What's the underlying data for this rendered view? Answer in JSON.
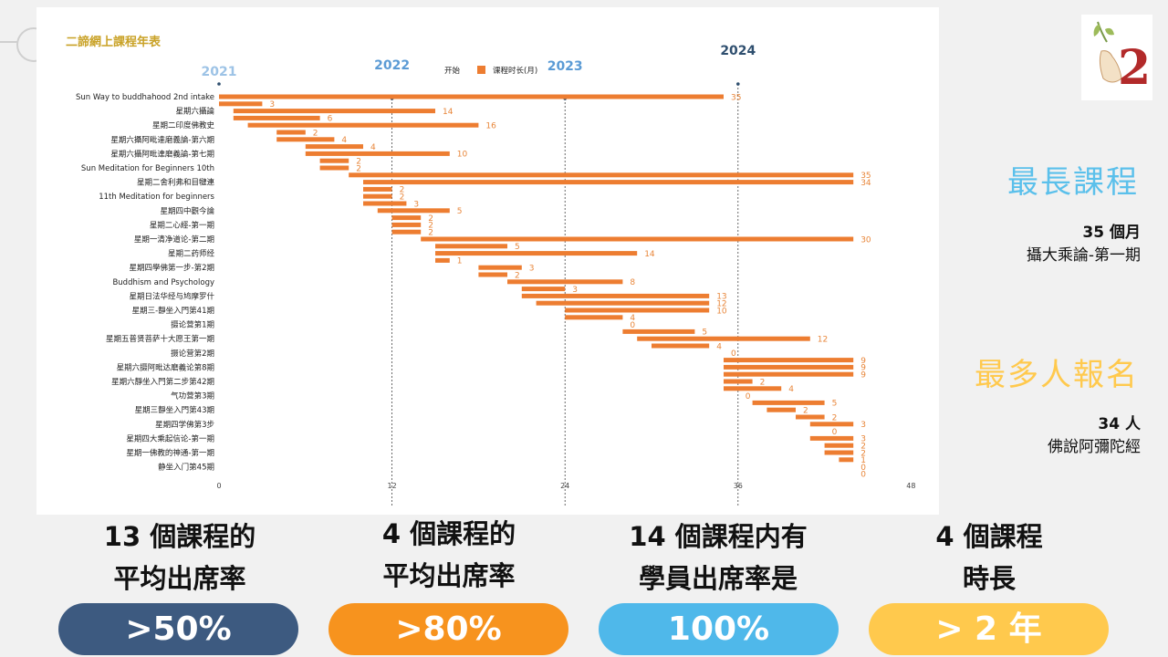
{
  "chart_data": {
    "type": "gantt",
    "title": "二諦網上課程年表",
    "legend": {
      "start_label": "开始",
      "duration_label": "课程时长(月)"
    },
    "x_ticks": [
      0,
      12,
      24,
      36,
      48
    ],
    "x_range": [
      0,
      48
    ],
    "year_markers": [
      {
        "label": "2021",
        "x": 0,
        "color": "#9dc3e6"
      },
      {
        "label": "2022",
        "x": 12,
        "color": "#5b9bd5"
      },
      {
        "label": "2023",
        "x": 24,
        "color": "#5b9bd5"
      },
      {
        "label": "2024",
        "x": 36,
        "color": "#2f4f6f"
      }
    ],
    "courses": [
      {
        "name": "Sun Way to buddhahood 2nd intake",
        "start": 0,
        "duration": 35
      },
      {
        "name": "",
        "start": 0,
        "duration": 3
      },
      {
        "name": "星期六攝論",
        "start": 1,
        "duration": 14
      },
      {
        "name": "",
        "start": 1,
        "duration": 6
      },
      {
        "name": "星期二印度佛教史",
        "start": 2,
        "duration": 16
      },
      {
        "name": "",
        "start": 4,
        "duration": 2
      },
      {
        "name": "星期六攝阿毗達磨義論-第六期",
        "start": 4,
        "duration": 4
      },
      {
        "name": "",
        "start": 6,
        "duration": 4
      },
      {
        "name": "星期六攝阿毗達磨義論-第七期",
        "start": 6,
        "duration": 10
      },
      {
        "name": "",
        "start": 7,
        "duration": 2
      },
      {
        "name": "Sun Meditation for Beginners 10th",
        "start": 7,
        "duration": 2
      },
      {
        "name": "",
        "start": 9,
        "duration": 35
      },
      {
        "name": "星期二舍利弗和目犍連",
        "start": 10,
        "duration": 34
      },
      {
        "name": "",
        "start": 10,
        "duration": 2
      },
      {
        "name": "11th Meditation for beginners",
        "start": 10,
        "duration": 2
      },
      {
        "name": "",
        "start": 10,
        "duration": 3
      },
      {
        "name": "星期四中觀今論",
        "start": 11,
        "duration": 5
      },
      {
        "name": "",
        "start": 12,
        "duration": 2
      },
      {
        "name": "星期二心經-第一期",
        "start": 12,
        "duration": 2
      },
      {
        "name": "",
        "start": 12,
        "duration": 2
      },
      {
        "name": "星期一清净道论-第二期",
        "start": 14,
        "duration": 30
      },
      {
        "name": "",
        "start": 15,
        "duration": 5
      },
      {
        "name": "星期二药师经",
        "start": 15,
        "duration": 14
      },
      {
        "name": "",
        "start": 15,
        "duration": 1
      },
      {
        "name": "星期四學佛第一步-第2期",
        "start": 18,
        "duration": 3
      },
      {
        "name": "",
        "start": 18,
        "duration": 2
      },
      {
        "name": "Buddhism and Psychology",
        "start": 20,
        "duration": 8
      },
      {
        "name": "",
        "start": 21,
        "duration": 3
      },
      {
        "name": "星期日法华经与鸠摩罗什",
        "start": 21,
        "duration": 13
      },
      {
        "name": "",
        "start": 22,
        "duration": 12
      },
      {
        "name": "星期三-靜坐入門第41期",
        "start": 24,
        "duration": 10
      },
      {
        "name": "",
        "start": 24,
        "duration": 4
      },
      {
        "name": "摄论营第1期",
        "start": 28,
        "duration": 0
      },
      {
        "name": "",
        "start": 28,
        "duration": 5
      },
      {
        "name": "星期五普贤菩萨十大愿王第一期",
        "start": 29,
        "duration": 12
      },
      {
        "name": "",
        "start": 30,
        "duration": 4
      },
      {
        "name": "摄论营第2期",
        "start": 35,
        "duration": 0
      },
      {
        "name": "",
        "start": 35,
        "duration": 9
      },
      {
        "name": "星期六摄阿毗达磨義论第8期",
        "start": 35,
        "duration": 9
      },
      {
        "name": "",
        "start": 35,
        "duration": 9
      },
      {
        "name": "星期六靜坐入門第二步第42期",
        "start": 35,
        "duration": 2
      },
      {
        "name": "",
        "start": 35,
        "duration": 4
      },
      {
        "name": "气功营第3期",
        "start": 36,
        "duration": 0
      },
      {
        "name": "",
        "start": 37,
        "duration": 5
      },
      {
        "name": "星期三靜坐入門第43期",
        "start": 38,
        "duration": 2
      },
      {
        "name": "",
        "start": 40,
        "duration": 2
      },
      {
        "name": "星期四学佛第3步",
        "start": 41,
        "duration": 3
      },
      {
        "name": "",
        "start": 42,
        "duration": 0
      },
      {
        "name": "星期四大乘起信论-第一期",
        "start": 41,
        "duration": 3
      },
      {
        "name": "",
        "start": 42,
        "duration": 2
      },
      {
        "name": "星期一佛教的神通-第一期",
        "start": 42,
        "duration": 2
      },
      {
        "name": "",
        "start": 43,
        "duration": 1
      },
      {
        "name": "静坐入门第45期",
        "start": 44,
        "duration": 0
      },
      {
        "name": "",
        "start": 44,
        "duration": 0
      }
    ]
  },
  "colors": {
    "bar": "#ed7d31",
    "title": "#c9a227",
    "longest_heading": "#5bc0eb",
    "most_heading": "#ffc94d",
    "pill_navy": "#3d5a80",
    "pill_orange": "#f7931e",
    "pill_blue": "#4fb8ea",
    "pill_yellow": "#ffc94d"
  },
  "logo": {
    "icon": "bodhi-leaf-hand-icon",
    "number": "2"
  },
  "longest_course": {
    "heading": "最長課程",
    "value": "35 個月",
    "course": "攝大乘論-第一期"
  },
  "most_enrolled": {
    "heading": "最多人報名",
    "value": "34 人",
    "course": "佛說阿彌陀經"
  },
  "stats": [
    {
      "line1": "13 個課程的",
      "line2": "平均出席率",
      "badge": ">50%"
    },
    {
      "line1": "4 個課程的",
      "line2": "平均出席率",
      "badge": ">80%"
    },
    {
      "line1": "14 個課程内有",
      "line2": "學員出席率是",
      "badge": "100%"
    },
    {
      "line1": "4 個課程",
      "line2": "時長",
      "badge": "> 2 年"
    }
  ]
}
